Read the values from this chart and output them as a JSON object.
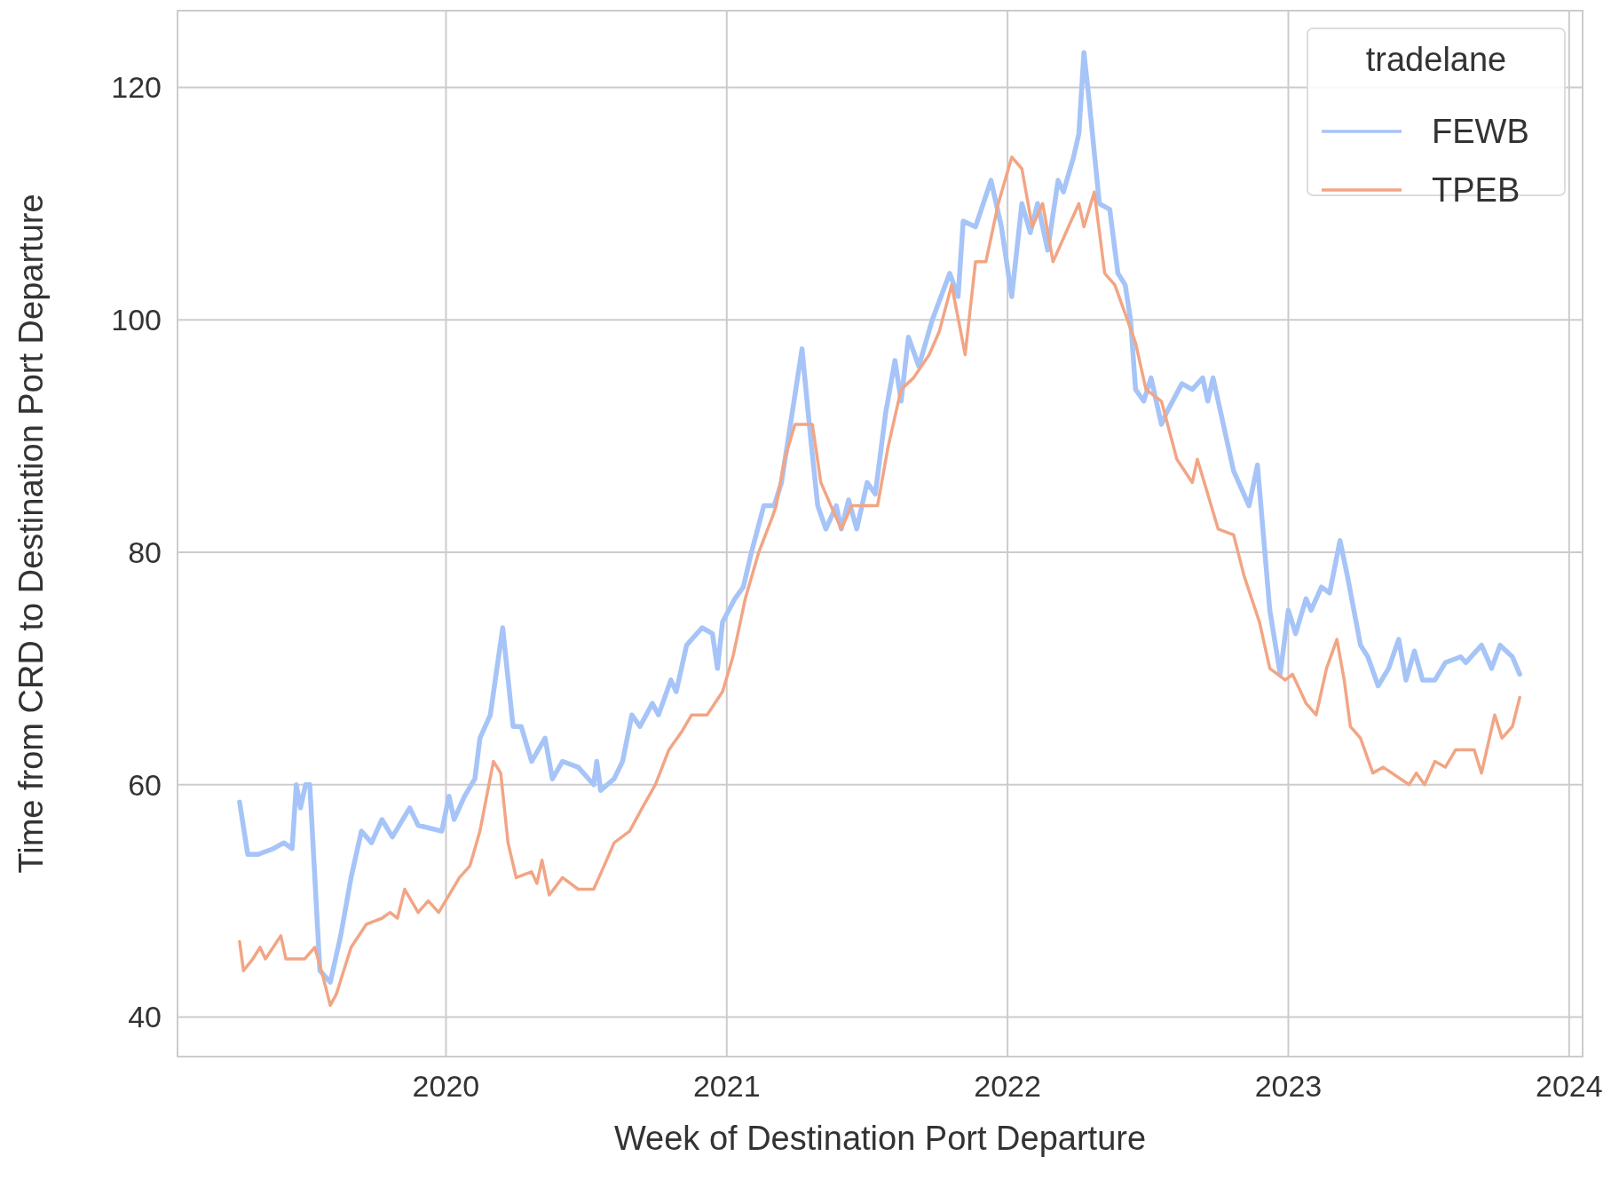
{
  "chart_data": {
    "type": "line",
    "xlabel": "Week of Destination Port Departure",
    "ylabel": "Time from CRD to Destination Port Departure",
    "legend_title": "tradelane",
    "legend": "top right",
    "grid": true,
    "line_style": "solid",
    "marker": "none",
    "xlim": [
      2019.044,
      2024.048
    ],
    "xticks": [
      2020,
      2021,
      2022,
      2023,
      2024
    ],
    "ylim": [
      36.6,
      126.6
    ],
    "yticks": [
      40,
      60,
      80,
      100,
      120
    ],
    "series": [
      {
        "name": "FEWB",
        "color": "#a6c4f7",
        "x": [
          2019.265,
          2019.294,
          2019.331,
          2019.386,
          2019.423,
          2019.452,
          2019.467,
          2019.482,
          2019.5,
          2019.515,
          2019.551,
          2019.588,
          2019.625,
          2019.662,
          2019.699,
          2019.735,
          2019.772,
          2019.809,
          2019.871,
          2019.901,
          2019.985,
          2020.011,
          2020.029,
          2020.066,
          2020.103,
          2020.121,
          2020.158,
          2020.202,
          2020.239,
          2020.268,
          2020.305,
          2020.353,
          2020.379,
          2020.415,
          2020.471,
          2020.526,
          2020.537,
          2020.551,
          2020.599,
          2020.629,
          2020.662,
          2020.691,
          2020.735,
          2020.757,
          2020.801,
          2020.82,
          2020.857,
          2020.912,
          2020.949,
          2020.967,
          2020.985,
          2021.029,
          2021.059,
          2021.088,
          2021.132,
          2021.169,
          2021.195,
          2021.268,
          2021.298,
          2021.324,
          2021.353,
          2021.39,
          2021.408,
          2021.434,
          2021.463,
          2021.5,
          2021.529,
          2021.566,
          2021.599,
          2021.621,
          2021.647,
          2021.684,
          2021.732,
          2021.794,
          2021.824,
          2021.842,
          2021.886,
          2021.941,
          2021.978,
          2022.015,
          2022.051,
          2022.081,
          2022.107,
          2022.143,
          2022.18,
          2022.199,
          2022.235,
          2022.254,
          2022.272,
          2022.29,
          2022.327,
          2022.364,
          2022.393,
          2022.419,
          2022.438,
          2022.456,
          2022.485,
          2022.511,
          2022.548,
          2022.566,
          2022.621,
          2022.658,
          2022.695,
          2022.713,
          2022.732,
          2022.805,
          2022.86,
          2022.89,
          2022.934,
          2022.971,
          2023.0,
          2023.026,
          2023.063,
          2023.081,
          2023.118,
          2023.147,
          2023.184,
          2023.21,
          2023.257,
          2023.283,
          2023.32,
          2023.357,
          2023.393,
          2023.419,
          2023.449,
          2023.478,
          2023.522,
          2023.559,
          2023.614,
          2023.632,
          2023.688,
          2023.724,
          2023.754,
          2023.798,
          2023.824
        ],
        "values": [
          58.5,
          54,
          54,
          54.5,
          55,
          54.5,
          60,
          58,
          60,
          60,
          44,
          43,
          47,
          52,
          56,
          55,
          57,
          55.5,
          58,
          56.5,
          56,
          59,
          57,
          59,
          60.5,
          64,
          66,
          73.5,
          65,
          65,
          62,
          64,
          60.5,
          62,
          61.5,
          60,
          62,
          59.5,
          60.5,
          62,
          66,
          65,
          67,
          66,
          69,
          68,
          72,
          73.5,
          73,
          70,
          74,
          76,
          77,
          80,
          84,
          84,
          86,
          97.5,
          90,
          84,
          82,
          84,
          82,
          84.5,
          82,
          86,
          85,
          92,
          96.5,
          93,
          98.5,
          96,
          100,
          104,
          102,
          108.5,
          108,
          112,
          108,
          102,
          110,
          107.5,
          110,
          106,
          112,
          111,
          114,
          116,
          123,
          119,
          110,
          109.5,
          104,
          103,
          100,
          94,
          93,
          95,
          91,
          92,
          94.5,
          94,
          95,
          93,
          95,
          87,
          84,
          87.5,
          75,
          69.5,
          75,
          73,
          76,
          75,
          77,
          76.5,
          81,
          78,
          72,
          71,
          68.5,
          70,
          72.5,
          69,
          71.5,
          69,
          69,
          70.5,
          71,
          70.5,
          72,
          70,
          72,
          71,
          69.5
        ]
      },
      {
        "name": "TPEB",
        "color": "#f2a584",
        "x": [
          2019.265,
          2019.279,
          2019.312,
          2019.338,
          2019.357,
          2019.412,
          2019.43,
          2019.496,
          2019.533,
          2019.562,
          2019.588,
          2019.61,
          2019.662,
          2019.717,
          2019.772,
          2019.801,
          2019.827,
          2019.853,
          2019.901,
          2019.937,
          2019.974,
          2020.011,
          2020.048,
          2020.085,
          2020.121,
          2020.169,
          2020.195,
          2020.221,
          2020.25,
          2020.305,
          2020.324,
          2020.342,
          2020.368,
          2020.415,
          2020.471,
          2020.526,
          2020.563,
          2020.599,
          2020.654,
          2020.699,
          2020.746,
          2020.794,
          2020.838,
          2020.875,
          2020.93,
          2020.985,
          2021.022,
          2021.066,
          2021.114,
          2021.162,
          2021.176,
          2021.206,
          2021.243,
          2021.305,
          2021.335,
          2021.371,
          2021.408,
          2021.445,
          2021.537,
          2021.574,
          2021.621,
          2021.665,
          2021.721,
          2021.757,
          2021.801,
          2021.849,
          2021.886,
          2021.923,
          2021.967,
          2022.015,
          2022.051,
          2022.088,
          2022.125,
          2022.162,
          2022.217,
          2022.254,
          2022.272,
          2022.309,
          2022.346,
          2022.382,
          2022.412,
          2022.456,
          2022.493,
          2022.548,
          2022.603,
          2022.658,
          2022.676,
          2022.75,
          2022.805,
          2022.842,
          2022.897,
          2022.934,
          2022.989,
          2023.015,
          2023.063,
          2023.099,
          2023.136,
          2023.173,
          2023.199,
          2023.221,
          2023.257,
          2023.301,
          2023.338,
          2023.43,
          2023.456,
          2023.485,
          2023.522,
          2023.559,
          2023.596,
          2023.662,
          2023.688,
          2023.735,
          2023.761,
          2023.798,
          2023.824
        ],
        "values": [
          46.5,
          44,
          45,
          46,
          45,
          47,
          45,
          45,
          46,
          43.5,
          41,
          42,
          46,
          48,
          48.5,
          49,
          48.5,
          51,
          49,
          50,
          49,
          50.5,
          52,
          53,
          56,
          62,
          61,
          55,
          52,
          52.5,
          51.5,
          53.5,
          50.5,
          52,
          51,
          51,
          53,
          55,
          56,
          58,
          60,
          63,
          64.5,
          66,
          66,
          68,
          71,
          76,
          80,
          83,
          84,
          88,
          91,
          91,
          86,
          84,
          82,
          84,
          84,
          89,
          94,
          95,
          97,
          99,
          103,
          97,
          105,
          105,
          110,
          114,
          113,
          108,
          110,
          105,
          108,
          110,
          108,
          111,
          104,
          103,
          101,
          98,
          94,
          93,
          88,
          86,
          88,
          82,
          81.5,
          78,
          74,
          70,
          69,
          69.5,
          67,
          66,
          70,
          72.5,
          69,
          65,
          64,
          61,
          61.5,
          60,
          61,
          60,
          62,
          61.5,
          63,
          63,
          61,
          66,
          64,
          65,
          67.5
        ]
      }
    ]
  }
}
